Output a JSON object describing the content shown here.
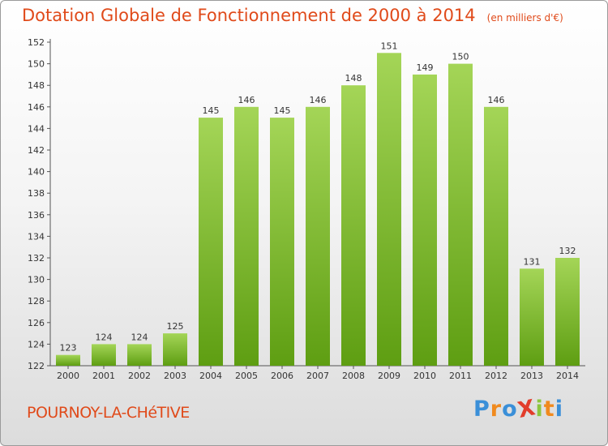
{
  "title": "Dotation Globale de Fonctionnement de 2000 à 2014",
  "unit_note": "(en milliers d'€)",
  "place": "POURNOY-LA-CHéTIVE",
  "logo": {
    "text": "Proxiti",
    "letters": [
      {
        "ch": "P",
        "color": "#3a8fd8"
      },
      {
        "ch": "r",
        "color": "#f08a1e"
      },
      {
        "ch": "o",
        "color": "#3a8fd8"
      },
      {
        "ch": "X",
        "color": "#e23d2b"
      },
      {
        "ch": "i",
        "color": "#8cc63f"
      },
      {
        "ch": "t",
        "color": "#f08a1e"
      },
      {
        "ch": "i",
        "color": "#3a8fd8"
      }
    ]
  },
  "colors": {
    "title": "#e04a1a",
    "bar_light": "#a4d557",
    "bar_dark": "#5e9e12",
    "axis": "#555555"
  },
  "chart_data": {
    "type": "bar",
    "title": "Dotation Globale de Fonctionnement de 2000 à 2014",
    "subtitle": "(en milliers d'€)",
    "xlabel": "",
    "ylabel": "",
    "categories": [
      "2000",
      "2001",
      "2002",
      "2003",
      "2004",
      "2005",
      "2006",
      "2007",
      "2008",
      "2009",
      "2010",
      "2011",
      "2012",
      "2013",
      "2014"
    ],
    "values": [
      123,
      124,
      124,
      125,
      145,
      146,
      145,
      146,
      148,
      151,
      149,
      150,
      146,
      131,
      132
    ],
    "ylim": [
      122,
      152
    ],
    "yticks": [
      122,
      124,
      126,
      128,
      130,
      132,
      134,
      136,
      138,
      140,
      142,
      144,
      146,
      148,
      150,
      152
    ],
    "grid": false,
    "legend": "none"
  }
}
